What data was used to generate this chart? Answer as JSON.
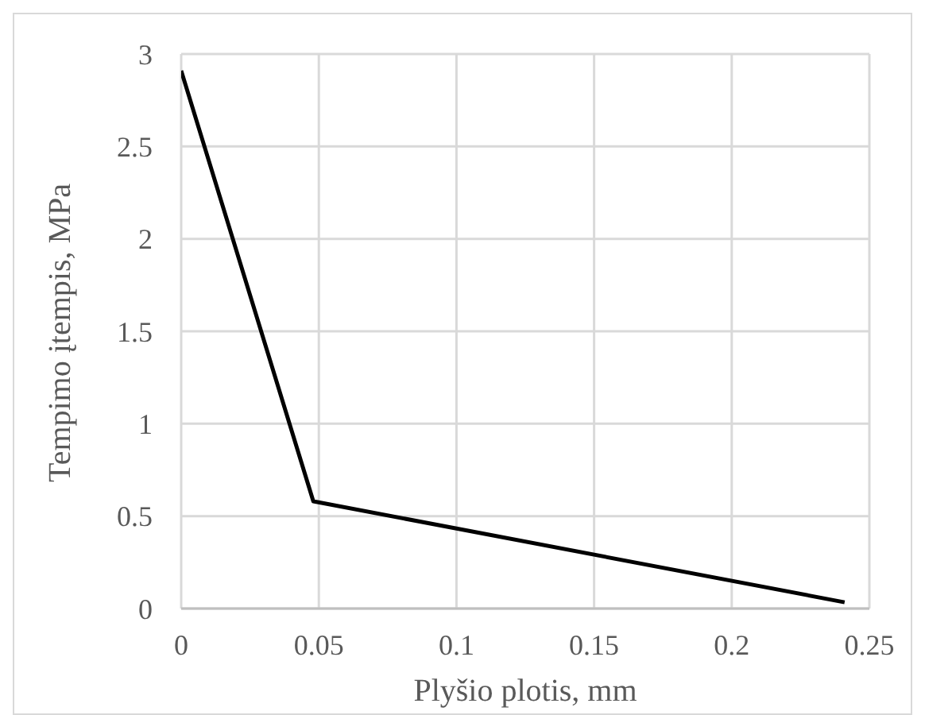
{
  "chart_data": {
    "type": "line",
    "xlabel": "Plyšio plotis, mm",
    "ylabel": "Tempimo įtempis, MPa",
    "x": [
      0,
      0.048,
      0.241
    ],
    "series": [
      {
        "color": "#000000",
        "values": [
          2.91,
          0.58,
          0.034
        ]
      }
    ],
    "xlim": [
      0,
      0.25
    ],
    "xticks": [
      0,
      0.05,
      0.1,
      0.15,
      0.2,
      0.25
    ],
    "ylim": [
      0,
      3
    ],
    "yticks": [
      0,
      0.5,
      1,
      1.5,
      2,
      2.5,
      3
    ],
    "grid": true,
    "marker": "none",
    "line_style": "solid"
  }
}
